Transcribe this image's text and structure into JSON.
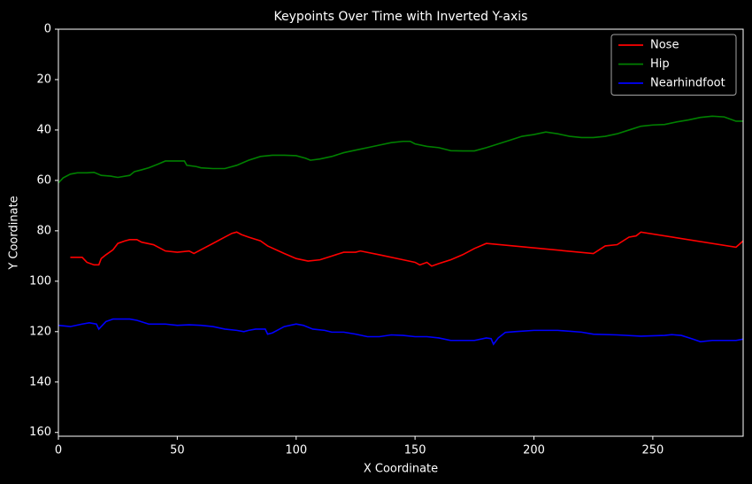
{
  "chart_data": {
    "type": "line",
    "title": "Keypoints Over Time with Inverted Y-axis",
    "x_label": "X Coordinate",
    "y_label": "Y Coordinate",
    "xlim": [
      0,
      288
    ],
    "ylim": [
      161.5,
      0
    ],
    "xticks": [
      0,
      50,
      100,
      150,
      200,
      250
    ],
    "yticks": [
      0,
      20,
      40,
      60,
      80,
      100,
      120,
      140,
      160
    ],
    "grid": false,
    "legend": "upper right",
    "series": [
      {
        "name": "Nose",
        "color": "#ff0000",
        "x": [
          5,
          10,
          12,
          15,
          17,
          18,
          20,
          23,
          25,
          28,
          30,
          33,
          35,
          40,
          45,
          50,
          55,
          57,
          60,
          65,
          70,
          73,
          75,
          77,
          80,
          85,
          88,
          95,
          100,
          105,
          110,
          115,
          120,
          125,
          127,
          135,
          145,
          150,
          152,
          155,
          157,
          160,
          165,
          170,
          175,
          180,
          225,
          230,
          235,
          240,
          243,
          245,
          285,
          288
        ],
        "values": [
          90.5,
          90.5,
          92.5,
          93.5,
          93.5,
          91,
          89.5,
          87.5,
          85,
          84,
          83.5,
          83.5,
          84.5,
          85.5,
          88,
          88.5,
          88,
          89,
          87.5,
          85,
          82.5,
          81,
          80.5,
          81.5,
          82.5,
          84,
          86,
          89,
          91,
          92,
          91.5,
          90,
          88.5,
          88.5,
          88,
          89.5,
          91.5,
          92.5,
          93.5,
          92.5,
          94,
          93,
          91.5,
          89.5,
          87,
          85,
          89,
          86,
          85.5,
          82.5,
          82,
          80.5,
          86.5,
          84
        ]
      },
      {
        "name": "Hip",
        "color": "#008000",
        "x": [
          0,
          2,
          5,
          8,
          12,
          15,
          18,
          22,
          25,
          30,
          32,
          35,
          38,
          42,
          45,
          50,
          53,
          54,
          58,
          60,
          65,
          70,
          75,
          80,
          85,
          90,
          95,
          100,
          104,
          106,
          110,
          115,
          120,
          125,
          130,
          135,
          140,
          145,
          148,
          150,
          155,
          160,
          165,
          170,
          175,
          180,
          185,
          190,
          195,
          200,
          205,
          210,
          215,
          220,
          225,
          230,
          235,
          240,
          245,
          250,
          255,
          260,
          265,
          270,
          275,
          280,
          285,
          288
        ],
        "values": [
          61,
          59,
          57.5,
          57,
          57,
          56.8,
          58,
          58.3,
          58.8,
          58,
          56.5,
          55.8,
          55,
          53.5,
          52.3,
          52.3,
          52.3,
          54,
          54.5,
          55,
          55.3,
          55.3,
          54,
          52,
          50.5,
          50,
          50,
          50.2,
          51.2,
          52,
          51.5,
          50.5,
          49,
          48,
          47,
          46,
          45,
          44.5,
          44.5,
          45.5,
          46.5,
          47,
          48.2,
          48.3,
          48.3,
          47,
          45.5,
          44,
          42.5,
          41.8,
          40.8,
          41.5,
          42.5,
          43,
          43,
          42.5,
          41.5,
          40,
          38.5,
          38,
          37.8,
          36.8,
          36,
          35,
          34.5,
          34.8,
          36.5,
          36.5
        ]
      },
      {
        "name": "Nearhindfoot",
        "color": "#0000ff",
        "x": [
          0,
          5,
          10,
          13,
          16,
          17,
          18,
          20,
          23,
          30,
          33,
          38,
          45,
          50,
          55,
          60,
          65,
          70,
          75,
          78,
          80,
          83,
          87,
          88,
          90,
          95,
          100,
          103,
          107,
          112,
          115,
          120,
          125,
          130,
          135,
          140,
          145,
          150,
          155,
          160,
          165,
          175,
          180,
          182,
          183,
          185,
          188,
          192,
          200,
          210,
          220,
          225,
          235,
          245,
          255,
          258,
          262,
          267,
          270,
          275,
          285,
          288
        ],
        "values": [
          117.5,
          118,
          117,
          116.5,
          117,
          119,
          118,
          116,
          115,
          115,
          115.5,
          117,
          117,
          117.5,
          117.3,
          117.5,
          118,
          119,
          119.5,
          120,
          119.5,
          119,
          119,
          121,
          120.5,
          118,
          117,
          117.5,
          119,
          119.5,
          120.2,
          120.2,
          121,
          122,
          122,
          121.3,
          121.5,
          122,
          122,
          122.5,
          123.5,
          123.5,
          122.5,
          122.8,
          125,
          122.5,
          120.3,
          120,
          119.5,
          119.5,
          120.2,
          121,
          121.3,
          121.8,
          121.5,
          121.2,
          121.5,
          123,
          124,
          123.5,
          123.5,
          123
        ]
      }
    ]
  }
}
